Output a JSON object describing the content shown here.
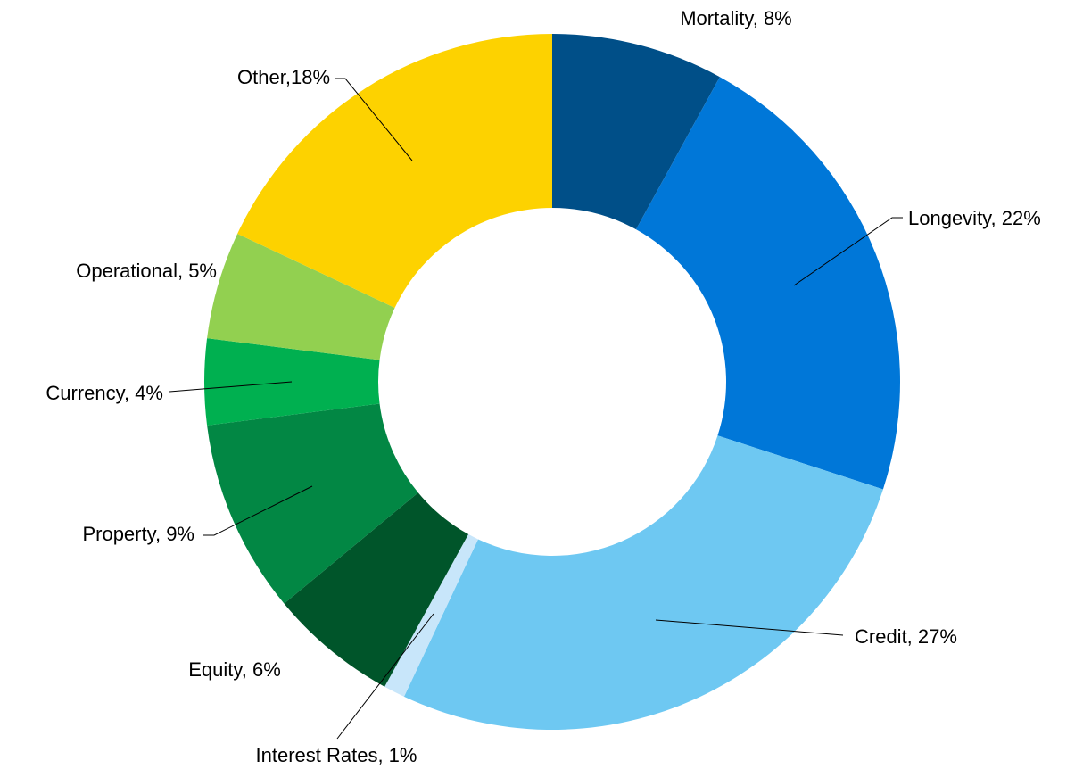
{
  "chart_data": {
    "type": "pie",
    "values": [
      8,
      22,
      27,
      1,
      6,
      9,
      4,
      5,
      18
    ],
    "value_labels": [
      "Mortality, 8%",
      "Longevity, 22%",
      "Credit, 27%",
      "Interest Rates, 1%",
      "Equity, 6%",
      "Property, 9%",
      "Currency, 4%",
      "Operational, 5%",
      "Other,18%"
    ],
    "colors": [
      "#004f88",
      "#0077d8",
      "#6ec8f2",
      "#c8e6fa",
      "#00552a",
      "#028744",
      "#00b050",
      "#92d050",
      "#fdd200"
    ]
  }
}
